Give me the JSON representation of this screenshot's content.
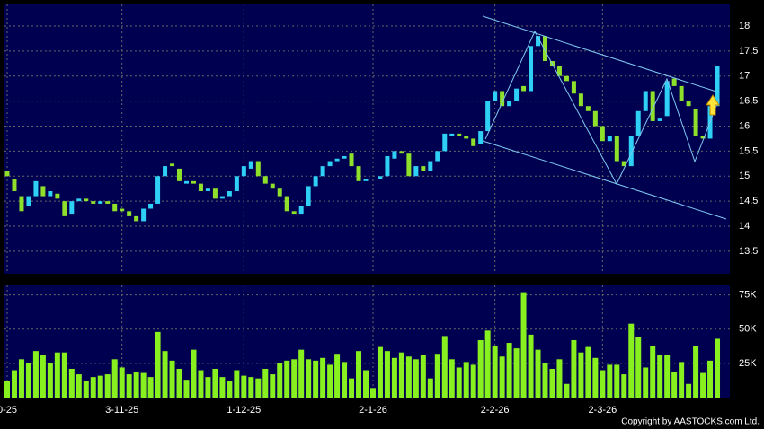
{
  "chart_data": {
    "type": "candlestick",
    "categories": [
      "0-25",
      null,
      null,
      null,
      null,
      null,
      null,
      null,
      null,
      null,
      null,
      null,
      null,
      null,
      null,
      null,
      "3-11-25",
      null,
      null,
      null,
      null,
      null,
      null,
      null,
      null,
      null,
      null,
      null,
      null,
      null,
      null,
      null,
      null,
      "1-12-25",
      null,
      null,
      null,
      null,
      null,
      null,
      null,
      null,
      null,
      null,
      null,
      null,
      null,
      null,
      null,
      null,
      null,
      "2-1-26",
      null,
      null,
      null,
      null,
      null,
      null,
      null,
      null,
      null,
      null,
      null,
      null,
      null,
      null,
      null,
      null,
      "2-2-26",
      null,
      null,
      null,
      null,
      null,
      null,
      null,
      null,
      null,
      null,
      null,
      null,
      null,
      null,
      "2-3-26",
      null,
      null,
      null,
      null,
      null,
      null,
      null,
      null,
      null,
      null,
      null,
      null,
      null,
      null,
      null,
      null
    ],
    "open": [
      15.1,
      14.95,
      14.6,
      14.4,
      14.6,
      14.8,
      14.6,
      14.65,
      14.5,
      14.25,
      14.5,
      14.55,
      14.5,
      14.45,
      14.5,
      14.45,
      14.35,
      14.3,
      14.2,
      14.1,
      14.35,
      14.45,
      15.0,
      15.25,
      15.15,
      14.85,
      14.9,
      14.85,
      14.7,
      14.75,
      14.55,
      14.6,
      14.7,
      15.0,
      15.15,
      15.3,
      15.0,
      14.85,
      14.75,
      14.6,
      14.3,
      14.25,
      14.4,
      14.8,
      15.0,
      15.2,
      15.3,
      15.35,
      15.45,
      15.2,
      14.9,
      14.95,
      14.95,
      15.0,
      15.35,
      15.5,
      15.45,
      15.0,
      15.2,
      15.1,
      15.3,
      15.5,
      15.8,
      15.85,
      15.8,
      15.75,
      15.65,
      15.9,
      16.5,
      16.7,
      16.4,
      16.5,
      16.8,
      16.7,
      17.6,
      17.8,
      17.3,
      17.2,
      17.0,
      16.9,
      16.65,
      16.4,
      16.3,
      16.0,
      15.7,
      15.8,
      15.3,
      15.2,
      15.8,
      16.3,
      16.7,
      16.1,
      16.2,
      16.95,
      16.8,
      16.5,
      16.35,
      15.8,
      15.75,
      16.4
    ],
    "close": [
      15.0,
      14.7,
      14.3,
      14.6,
      14.9,
      14.6,
      14.7,
      14.55,
      14.2,
      14.5,
      14.55,
      14.5,
      14.45,
      14.5,
      14.45,
      14.3,
      14.3,
      14.2,
      14.1,
      14.35,
      14.45,
      15.0,
      15.2,
      15.2,
      14.9,
      14.9,
      14.85,
      14.7,
      14.75,
      14.55,
      14.6,
      14.7,
      15.0,
      15.2,
      15.3,
      15.0,
      14.85,
      14.75,
      14.6,
      14.3,
      14.25,
      14.4,
      14.8,
      15.0,
      15.2,
      15.3,
      15.35,
      15.4,
      15.2,
      14.9,
      14.95,
      14.95,
      15.0,
      15.4,
      15.5,
      15.45,
      15.0,
      15.2,
      15.1,
      15.3,
      15.5,
      15.85,
      15.85,
      15.8,
      15.75,
      15.6,
      15.9,
      16.5,
      16.7,
      16.4,
      16.5,
      16.75,
      16.7,
      17.6,
      17.8,
      17.3,
      17.2,
      17.0,
      16.9,
      16.65,
      16.4,
      16.3,
      16.0,
      15.7,
      15.8,
      15.3,
      15.2,
      15.8,
      16.3,
      16.7,
      16.1,
      16.15,
      16.9,
      16.8,
      16.5,
      16.4,
      15.8,
      15.75,
      16.4,
      17.2
    ],
    "up_color": "#2fd0f5",
    "down_color": "#8ee02a",
    "ylim": [
      13.05,
      18.43
    ],
    "yticks": [
      13.5,
      14,
      14.5,
      15,
      15.5,
      16,
      16.5,
      17,
      17.5,
      18
    ],
    "grid": true,
    "volume": {
      "color": "#88f01e",
      "values": [
        12000,
        20000,
        28000,
        25000,
        34000,
        31000,
        25000,
        33000,
        33000,
        21000,
        17000,
        12000,
        15000,
        16000,
        17000,
        28000,
        22000,
        17000,
        19000,
        18000,
        15000,
        48000,
        34000,
        27000,
        21000,
        13000,
        35000,
        20000,
        15000,
        21000,
        15000,
        12000,
        20000,
        16000,
        15000,
        14000,
        21000,
        17000,
        25000,
        27000,
        28000,
        35000,
        28000,
        27000,
        29000,
        24000,
        32000,
        26000,
        14000,
        34000,
        20000,
        7000,
        37000,
        34000,
        29000,
        33000,
        30000,
        28000,
        31000,
        14000,
        32000,
        45000,
        28000,
        22000,
        26000,
        24000,
        42000,
        49000,
        38000,
        30000,
        40000,
        36000,
        77000,
        46000,
        35000,
        25000,
        21000,
        28000,
        10000,
        42000,
        33000,
        37000,
        29000,
        20000,
        24000,
        24000,
        17000,
        54000,
        44000,
        22000,
        38000,
        31000,
        31000,
        19000,
        26000,
        10000,
        38000,
        18000,
        27000,
        43000
      ],
      "ylim": [
        0,
        82000
      ],
      "yticks": [
        {
          "value": 25000,
          "label": "25K"
        },
        {
          "value": 50000,
          "label": "50K"
        },
        {
          "value": 75000,
          "label": "75K"
        }
      ]
    }
  },
  "footer": "Copyright by AASTOCKS.com Ltd."
}
